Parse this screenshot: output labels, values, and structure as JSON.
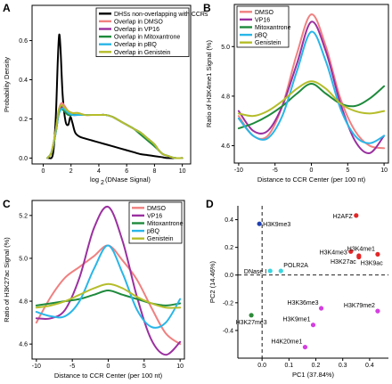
{
  "figure": {
    "background": "#ffffff"
  },
  "chart_data": [
    {
      "panel": "A",
      "type": "line",
      "xlabel_base": "log",
      "xlabel_sub": "2",
      "xlabel_rest": "(DNase Signal)",
      "ylabel": "Probability Density",
      "xlim": [
        -0.8,
        10.6
      ],
      "ylim": [
        -0.03,
        0.78
      ],
      "xticks": [
        0,
        2,
        4,
        6,
        8,
        10
      ],
      "yticks": [
        0,
        0.2,
        0.4,
        0.6
      ],
      "ytick_labels": [
        "0.0",
        "0.2",
        "0.4",
        "0.6"
      ],
      "series": [
        {
          "name": "DHSs non-overlapping with CCRs",
          "color": "#000000",
          "x": [
            0.4,
            0.7,
            0.9,
            1.05,
            1.15,
            1.25,
            1.4,
            1.6,
            1.8,
            1.95,
            2.1,
            2.3,
            2.6,
            3.0,
            3.5,
            4.0,
            4.5,
            5.0,
            5.5,
            6.0,
            6.5,
            7.0,
            7.5,
            8.0,
            8.5,
            9.0,
            10.0
          ],
          "y": [
            0.0,
            0.02,
            0.2,
            0.5,
            0.63,
            0.55,
            0.32,
            0.19,
            0.17,
            0.21,
            0.18,
            0.13,
            0.11,
            0.1,
            0.09,
            0.08,
            0.07,
            0.06,
            0.05,
            0.04,
            0.03,
            0.02,
            0.015,
            0.01,
            0.005,
            0.0,
            0.0
          ]
        },
        {
          "name": "Overlap in DMSO",
          "color": "#f08080",
          "x": [
            0.3,
            0.6,
            0.9,
            1.1,
            1.3,
            1.5,
            1.8,
            2.1,
            2.5,
            3.0,
            3.5,
            4.0,
            4.5,
            5.0,
            5.5,
            6.0,
            6.5,
            7.0,
            7.5,
            8.0,
            8.3,
            8.6,
            9.0,
            9.5,
            10.0
          ],
          "y": [
            0.0,
            0.03,
            0.14,
            0.24,
            0.28,
            0.27,
            0.24,
            0.23,
            0.23,
            0.22,
            0.22,
            0.22,
            0.22,
            0.21,
            0.19,
            0.17,
            0.15,
            0.13,
            0.1,
            0.07,
            0.04,
            0.02,
            0.01,
            0.0,
            0.0
          ]
        },
        {
          "name": "Overlap in VP16",
          "color": "#9b30a0",
          "x": [
            0.3,
            0.6,
            0.9,
            1.1,
            1.3,
            1.5,
            1.8,
            2.1,
            2.5,
            3.0,
            3.5,
            4.0,
            4.5,
            5.0,
            5.5,
            6.0,
            6.5,
            7.0,
            7.5,
            8.0,
            8.3,
            8.6,
            9.0,
            9.5,
            10.0
          ],
          "y": [
            0.0,
            0.03,
            0.13,
            0.22,
            0.26,
            0.25,
            0.23,
            0.22,
            0.22,
            0.22,
            0.22,
            0.22,
            0.22,
            0.21,
            0.19,
            0.17,
            0.15,
            0.13,
            0.1,
            0.07,
            0.04,
            0.02,
            0.01,
            0.0,
            0.0
          ]
        },
        {
          "name": "Overlap in Mitoxantrone",
          "color": "#1e8a3c",
          "x": [
            0.3,
            0.6,
            0.9,
            1.1,
            1.3,
            1.5,
            1.8,
            2.1,
            2.5,
            3.0,
            3.5,
            4.0,
            4.5,
            5.0,
            5.5,
            6.0,
            6.5,
            7.0,
            7.5,
            8.0,
            8.3,
            8.6,
            9.0,
            9.5,
            10.0
          ],
          "y": [
            0.0,
            0.03,
            0.13,
            0.22,
            0.25,
            0.24,
            0.22,
            0.22,
            0.22,
            0.22,
            0.22,
            0.22,
            0.22,
            0.21,
            0.19,
            0.17,
            0.15,
            0.12,
            0.09,
            0.06,
            0.04,
            0.02,
            0.01,
            0.0,
            0.0
          ]
        },
        {
          "name": "Overlap in pBQ",
          "color": "#29b6e8",
          "x": [
            0.3,
            0.6,
            0.9,
            1.1,
            1.3,
            1.5,
            1.8,
            2.1,
            2.5,
            3.0,
            3.5,
            4.0,
            4.5,
            5.0,
            5.5,
            6.0,
            6.5,
            7.0,
            7.5,
            8.0,
            8.3,
            8.6,
            9.0,
            9.5,
            10.0
          ],
          "y": [
            0.0,
            0.03,
            0.13,
            0.22,
            0.25,
            0.25,
            0.23,
            0.22,
            0.22,
            0.22,
            0.22,
            0.22,
            0.22,
            0.21,
            0.19,
            0.17,
            0.15,
            0.13,
            0.1,
            0.07,
            0.04,
            0.02,
            0.01,
            0.0,
            0.0
          ]
        },
        {
          "name": "Overlap in Genistein",
          "color": "#b5bd2a",
          "x": [
            0.3,
            0.6,
            0.9,
            1.1,
            1.3,
            1.5,
            1.8,
            2.1,
            2.5,
            3.0,
            3.5,
            4.0,
            4.5,
            5.0,
            5.5,
            6.0,
            6.5,
            7.0,
            7.5,
            8.0,
            8.3,
            8.6,
            9.0,
            9.5,
            10.0
          ],
          "y": [
            0.0,
            0.03,
            0.14,
            0.24,
            0.27,
            0.26,
            0.24,
            0.23,
            0.23,
            0.22,
            0.22,
            0.22,
            0.22,
            0.21,
            0.19,
            0.17,
            0.15,
            0.13,
            0.1,
            0.07,
            0.04,
            0.02,
            0.01,
            0.0,
            0.0
          ]
        }
      ]
    },
    {
      "panel": "B",
      "type": "line",
      "xlabel": "Distance to CCR Center (per 100 nt)",
      "ylabel": "Ratio of H3K4me1 Signal (%)",
      "xlim": [
        -10.6,
        10.6
      ],
      "ylim": [
        4.53,
        5.17
      ],
      "xticks": [
        -10,
        -5,
        0,
        5,
        10
      ],
      "yticks": [
        4.6,
        4.8,
        5.0
      ],
      "ytick_labels": [
        "4.6",
        "4.8",
        "5.0"
      ],
      "series": [
        {
          "name": "DMSO",
          "color": "#f08080",
          "x": [
            -10,
            -8,
            -6,
            -4,
            -2,
            0,
            2,
            4,
            6,
            8,
            10
          ],
          "y": [
            4.72,
            4.64,
            4.64,
            4.76,
            4.97,
            5.13,
            5.0,
            4.79,
            4.66,
            4.6,
            4.59
          ]
        },
        {
          "name": "VP16",
          "color": "#9b30a0",
          "x": [
            -10,
            -8,
            -6,
            -4,
            -2,
            0,
            2,
            4,
            6,
            8,
            10
          ],
          "y": [
            4.74,
            4.66,
            4.66,
            4.76,
            4.93,
            5.1,
            4.98,
            4.77,
            4.62,
            4.57,
            4.64
          ]
        },
        {
          "name": "Mitoxantrone",
          "color": "#1e8a3c",
          "x": [
            -10,
            -8,
            -6,
            -4,
            -2,
            0,
            2,
            4,
            6,
            8,
            10
          ],
          "y": [
            4.67,
            4.69,
            4.72,
            4.76,
            4.81,
            4.85,
            4.81,
            4.77,
            4.76,
            4.79,
            4.84
          ]
        },
        {
          "name": "pBQ",
          "color": "#29b6e8",
          "x": [
            -10,
            -8,
            -6,
            -4,
            -2,
            0,
            2,
            4,
            6,
            8,
            10
          ],
          "y": [
            4.71,
            4.64,
            4.63,
            4.72,
            4.9,
            5.06,
            4.94,
            4.75,
            4.64,
            4.61,
            4.64
          ]
        },
        {
          "name": "Genistein",
          "color": "#b5bd2a",
          "x": [
            -10,
            -8,
            -6,
            -4,
            -2,
            0,
            2,
            4,
            6,
            8,
            10
          ],
          "y": [
            4.73,
            4.72,
            4.74,
            4.78,
            4.83,
            4.86,
            4.83,
            4.77,
            4.74,
            4.73,
            4.74
          ]
        }
      ]
    },
    {
      "panel": "C",
      "type": "line",
      "xlabel": "Distance to CCR Center (per 100 nt)",
      "ylabel": "Ratio of H3K27ac Signal (%)",
      "xlim": [
        -10.6,
        10.6
      ],
      "ylim": [
        4.53,
        5.27
      ],
      "xticks": [
        -10,
        -5,
        0,
        5,
        10
      ],
      "yticks": [
        4.6,
        4.8,
        5.0,
        5.2
      ],
      "ytick_labels": [
        "4.6",
        "4.8",
        "5.0",
        "5.2"
      ],
      "series": [
        {
          "name": "DMSO",
          "color": "#f08080",
          "x": [
            -10,
            -8,
            -6,
            -4,
            -2,
            0,
            2,
            4,
            6,
            8,
            10
          ],
          "y": [
            4.7,
            4.82,
            4.91,
            4.96,
            5.01,
            5.06,
            4.99,
            4.9,
            4.77,
            4.65,
            4.6
          ]
        },
        {
          "name": "VP16",
          "color": "#9b30a0",
          "x": [
            -10,
            -8,
            -6,
            -4,
            -2,
            0,
            2,
            4,
            6,
            8,
            10
          ],
          "y": [
            4.72,
            4.72,
            4.76,
            4.91,
            5.14,
            5.24,
            5.08,
            4.82,
            4.62,
            4.55,
            4.61
          ]
        },
        {
          "name": "Mitoxantrone",
          "color": "#1e8a3c",
          "x": [
            -10,
            -8,
            -6,
            -4,
            -2,
            0,
            2,
            4,
            6,
            8,
            10
          ],
          "y": [
            4.78,
            4.79,
            4.8,
            4.81,
            4.83,
            4.85,
            4.83,
            4.81,
            4.79,
            4.78,
            4.79
          ]
        },
        {
          "name": "pBQ",
          "color": "#29b6e8",
          "x": [
            -10,
            -8,
            -6,
            -4,
            -2,
            0,
            2,
            4,
            6,
            8,
            10
          ],
          "y": [
            4.75,
            4.73,
            4.73,
            4.8,
            4.95,
            5.06,
            4.93,
            4.76,
            4.68,
            4.7,
            4.81
          ]
        },
        {
          "name": "Genistein",
          "color": "#b5bd2a",
          "x": [
            -10,
            -8,
            -6,
            -4,
            -2,
            0,
            2,
            4,
            6,
            8,
            10
          ],
          "y": [
            4.77,
            4.78,
            4.8,
            4.83,
            4.86,
            4.88,
            4.86,
            4.82,
            4.79,
            4.77,
            4.77
          ]
        }
      ]
    },
    {
      "panel": "D",
      "type": "scatter",
      "xlabel": "PC1 (37.84%)",
      "ylabel": "PC2 (14.46%)",
      "xlim": [
        -0.09,
        0.47
      ],
      "ylim": [
        -0.6,
        0.5
      ],
      "xticks": [
        0.0,
        0.1,
        0.2,
        0.3,
        0.4
      ],
      "xtick_labels": [
        "0.0",
        "0.1",
        "0.2",
        "0.3",
        "0.4"
      ],
      "yticks": [
        -0.4,
        -0.2,
        0.0,
        0.2,
        0.4
      ],
      "ytick_labels": [
        "-0.4",
        "-0.2",
        "0.0",
        "0.2",
        "0.4"
      ],
      "points": [
        {
          "label": "H3K9me3",
          "x": -0.01,
          "y": 0.37,
          "color": "#1f3fb3",
          "label_pos": "right"
        },
        {
          "label": "H2AFZ",
          "x": 0.35,
          "y": 0.43,
          "color": "#e32626",
          "label_pos": "left"
        },
        {
          "label": "H3K4me3",
          "x": 0.33,
          "y": 0.17,
          "color": "#e32626",
          "label_pos": "left"
        },
        {
          "label": "H3K4me1",
          "x": 0.43,
          "y": 0.15,
          "color": "#e32626",
          "label_pos": "above-left"
        },
        {
          "label": "H3K27ac",
          "x": 0.36,
          "y": 0.14,
          "color": "#e32626",
          "label_pos": "below-left"
        },
        {
          "label": "H3K9ac",
          "x": 0.36,
          "y": 0.13,
          "color": "#e32626",
          "label_pos": "below-right"
        },
        {
          "label": "DNase I",
          "x": 0.03,
          "y": 0.03,
          "color": "#3ad6e0",
          "label_pos": "left"
        },
        {
          "label": "POLR2A",
          "x": 0.07,
          "y": 0.03,
          "color": "#3ad6e0",
          "label_pos": "above-right"
        },
        {
          "label": "H3K36me3",
          "x": 0.22,
          "y": -0.24,
          "color": "#d43ee0",
          "label_pos": "above-left"
        },
        {
          "label": "H3K79me2",
          "x": 0.43,
          "y": -0.26,
          "color": "#d43ee0",
          "label_pos": "above-left"
        },
        {
          "label": "H3K9me1",
          "x": 0.19,
          "y": -0.36,
          "color": "#d43ee0",
          "label_pos": "above-left"
        },
        {
          "label": "H4K20me1",
          "x": 0.16,
          "y": -0.52,
          "color": "#d43ee0",
          "label_pos": "above-left"
        },
        {
          "label": "H3K27me3",
          "x": -0.04,
          "y": -0.29,
          "color": "#2e8b3a",
          "label_pos": "below"
        }
      ]
    }
  ]
}
